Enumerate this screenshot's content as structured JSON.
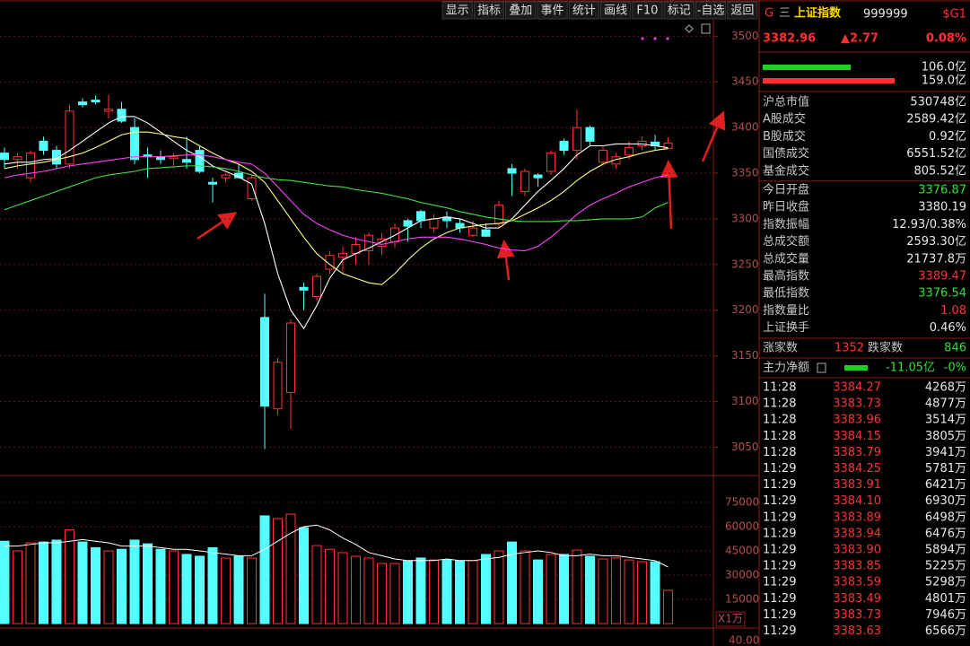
{
  "toolbar": [
    "显示",
    "指标",
    "叠加",
    "事件",
    "统计",
    "画线",
    "F10",
    "标记",
    "-自选",
    "返回"
  ],
  "kline": {
    "ylim": [
      3019,
      3518
    ],
    "yticks": [
      3500,
      3450,
      3400,
      3350,
      3300,
      3250,
      3200,
      3150,
      3100,
      3050
    ],
    "up_color": "#ff3232",
    "down_color": "#54ffff",
    "candles": [
      [
        3372,
        3378,
        3355,
        3365
      ],
      [
        3365,
        3372,
        3355,
        3368
      ],
      [
        3345,
        3375,
        3340,
        3372
      ],
      [
        3385,
        3390,
        3370,
        3375
      ],
      [
        3375,
        3380,
        3355,
        3360
      ],
      [
        3360,
        3425,
        3355,
        3418
      ],
      [
        3428,
        3432,
        3422,
        3425
      ],
      [
        3430,
        3435,
        3425,
        3428
      ],
      [
        3418,
        3436,
        3410,
        3420
      ],
      [
        3420,
        3428,
        3405,
        3407
      ],
      [
        3400,
        3410,
        3360,
        3365
      ],
      [
        3370,
        3378,
        3345,
        3368
      ],
      [
        3368,
        3375,
        3360,
        3365
      ],
      [
        3366,
        3372,
        3358,
        3368
      ],
      [
        3365,
        3390,
        3355,
        3362
      ],
      [
        3375,
        3380,
        3350,
        3352
      ],
      [
        3340,
        3345,
        3318,
        3338
      ],
      [
        3345,
        3350,
        3340,
        3348
      ],
      [
        3350,
        3360,
        3345,
        3345
      ],
      [
        3322,
        3348,
        3320,
        3345
      ],
      [
        3192,
        3218,
        3048,
        3095
      ],
      [
        3092,
        3148,
        3085,
        3143
      ],
      [
        3110,
        3190,
        3070,
        3186
      ],
      [
        3225,
        3230,
        3200,
        3222
      ],
      [
        3215,
        3240,
        3210,
        3237
      ],
      [
        3245,
        3265,
        3240,
        3260
      ],
      [
        3258,
        3270,
        3240,
        3262
      ],
      [
        3262,
        3280,
        3250,
        3272
      ],
      [
        3265,
        3285,
        3250,
        3282
      ],
      [
        3270,
        3285,
        3260,
        3278
      ],
      [
        3275,
        3295,
        3268,
        3290
      ],
      [
        3298,
        3300,
        3275,
        3292
      ],
      [
        3308,
        3310,
        3290,
        3298
      ],
      [
        3290,
        3305,
        3285,
        3300
      ],
      [
        3302,
        3308,
        3290,
        3298
      ],
      [
        3295,
        3300,
        3285,
        3290
      ],
      [
        3282,
        3298,
        3280,
        3290
      ],
      [
        3288,
        3295,
        3280,
        3281
      ],
      [
        3295,
        3320,
        3290,
        3315
      ],
      [
        3355,
        3360,
        3325,
        3350
      ],
      [
        3330,
        3355,
        3325,
        3352
      ],
      [
        3348,
        3350,
        3335,
        3345
      ],
      [
        3352,
        3375,
        3348,
        3372
      ],
      [
        3385,
        3388,
        3370,
        3375
      ],
      [
        3375,
        3420,
        3365,
        3400
      ],
      [
        3400,
        3402,
        3380,
        3385
      ],
      [
        3362,
        3380,
        3358,
        3375
      ],
      [
        3360,
        3372,
        3355,
        3368
      ],
      [
        3370,
        3385,
        3365,
        3378
      ],
      [
        3380,
        3390,
        3375,
        3385
      ],
      [
        3384,
        3392,
        3375,
        3380
      ],
      [
        3376.87,
        3389.47,
        3376.54,
        3382.96
      ]
    ],
    "ma": [
      {
        "color": "#ffffff",
        "values": [
          3360,
          3362,
          3362,
          3365,
          3366,
          3375,
          3385,
          3395,
          3405,
          3412,
          3412,
          3405,
          3395,
          3385,
          3375,
          3368,
          3358,
          3352,
          3346,
          3338,
          3295,
          3240,
          3200,
          3180,
          3205,
          3235,
          3255,
          3262,
          3268,
          3275,
          3282,
          3290,
          3298,
          3300,
          3302,
          3300,
          3295,
          3290,
          3290,
          3300,
          3315,
          3330,
          3342,
          3355,
          3370,
          3380,
          3380,
          3382,
          3382,
          3382,
          3380,
          3378
        ]
      },
      {
        "color": "#ffff80",
        "values": [
          3355,
          3358,
          3360,
          3362,
          3365,
          3368,
          3372,
          3378,
          3385,
          3392,
          3395,
          3395,
          3393,
          3390,
          3388,
          3380,
          3372,
          3365,
          3360,
          3352,
          3340,
          3320,
          3300,
          3280,
          3262,
          3250,
          3240,
          3235,
          3230,
          3228,
          3240,
          3255,
          3268,
          3278,
          3285,
          3290,
          3292,
          3294,
          3295,
          3298,
          3305,
          3312,
          3320,
          3330,
          3342,
          3352,
          3360,
          3365,
          3368,
          3372,
          3375,
          3377
        ]
      },
      {
        "color": "#ff40ff",
        "values": [
          3345,
          3348,
          3350,
          3352,
          3355,
          3358,
          3360,
          3362,
          3364,
          3366,
          3368,
          3368,
          3368,
          3369,
          3370,
          3370,
          3368,
          3365,
          3362,
          3360,
          3350,
          3335,
          3320,
          3305,
          3295,
          3288,
          3282,
          3278,
          3275,
          3272,
          3275,
          3278,
          3280,
          3280,
          3280,
          3278,
          3275,
          3272,
          3268,
          3266,
          3265,
          3270,
          3280,
          3292,
          3305,
          3315,
          3322,
          3328,
          3335,
          3340,
          3345,
          3348
        ]
      },
      {
        "color": "#40e040",
        "values": [
          3310,
          3315,
          3320,
          3325,
          3330,
          3335,
          3340,
          3345,
          3348,
          3350,
          3352,
          3355,
          3356,
          3357,
          3358,
          3358,
          3357,
          3355,
          3352,
          3348,
          3345,
          3343,
          3342,
          3340,
          3338,
          3336,
          3335,
          3332,
          3330,
          3328,
          3325,
          3322,
          3318,
          3315,
          3312,
          3308,
          3305,
          3302,
          3300,
          3298,
          3297,
          3297,
          3297,
          3298,
          3298,
          3299,
          3300,
          3300,
          3300,
          3302,
          3312,
          3318
        ]
      }
    ]
  },
  "volume": {
    "ylim": [
      0,
      88900
    ],
    "yticks": [
      75000,
      60000,
      45000,
      30000,
      15000
    ],
    "unit": "X1万",
    "bottom_label": "40.00",
    "values": [
      51000,
      45000,
      50000,
      50500,
      51700,
      58000,
      50500,
      47000,
      45000,
      46000,
      51700,
      49400,
      46000,
      45000,
      42800,
      41700,
      47000,
      40600,
      41700,
      40600,
      66700,
      65000,
      67800,
      59400,
      48300,
      46000,
      43900,
      41700,
      40600,
      37200,
      37200,
      38900,
      40600,
      39400,
      39400,
      38900,
      38900,
      42800,
      45000,
      50500,
      45000,
      39400,
      42800,
      42800,
      45500,
      41700,
      40000,
      40600,
      39400,
      38300,
      38300,
      20600
    ],
    "ma": {
      "color": "#ffffff",
      "values": [
        48000,
        48000,
        49000,
        50000,
        50000,
        51000,
        52000,
        51000,
        50000,
        48000,
        48000,
        48000,
        47000,
        46000,
        46000,
        45000,
        44000,
        43000,
        42000,
        42000,
        46000,
        51000,
        56000,
        60000,
        61000,
        58000,
        53000,
        49000,
        44000,
        42000,
        40000,
        39000,
        39000,
        39000,
        40000,
        39000,
        39000,
        40000,
        41000,
        43000,
        44000,
        45000,
        44000,
        42000,
        42000,
        43000,
        42000,
        42000,
        41000,
        40000,
        39000,
        35000
      ]
    }
  },
  "quote": {
    "mark": "G",
    "menu": "三",
    "name": "上证指数",
    "code": "999999",
    "tag": "$G1",
    "price": "3382.96",
    "change": "▲2.77",
    "change_pct": "0.08%",
    "flow": {
      "values": [
        106.0,
        159.0
      ],
      "value_labels": [
        "106.0亿",
        "159.0亿"
      ],
      "colors": [
        "#20d020",
        "#ff3232"
      ]
    },
    "stats": [
      {
        "label": "沪总市值",
        "value": "530748亿",
        "color": "#e8e8e8"
      },
      {
        "label": "A股成交",
        "value": "2589.42亿",
        "color": "#e8e8e8"
      },
      {
        "label": "B股成交",
        "value": "0.92亿",
        "color": "#e8e8e8"
      },
      {
        "label": "国债成交",
        "value": "6551.52亿",
        "color": "#e8e8e8"
      },
      {
        "label": "基金成交",
        "value": "805.52亿",
        "color": "#e8e8e8"
      },
      {
        "label": "今日开盘",
        "value": "3376.87",
        "color": "#30e030"
      },
      {
        "label": "昨日收盘",
        "value": "3380.19",
        "color": "#e8e8e8"
      },
      {
        "label": "指数振幅",
        "value": "12.93/0.38%",
        "color": "#e8e8e8"
      },
      {
        "label": "总成交额",
        "value": "2593.30亿",
        "color": "#e8e8e8"
      },
      {
        "label": "总成交量",
        "value": "21737.8万",
        "color": "#e8e8e8"
      },
      {
        "label": "最高指数",
        "value": "3389.47",
        "color": "#ff3232"
      },
      {
        "label": "最低指数",
        "value": "3376.54",
        "color": "#30e030"
      },
      {
        "label": "指数量比",
        "value": "1.08",
        "color": "#ff3232"
      },
      {
        "label": "上证换手",
        "value": "0.46%",
        "color": "#e8e8e8"
      }
    ],
    "breadth": {
      "up_label": "涨家数",
      "up": "1352",
      "down_label": "跌家数",
      "down": "846"
    },
    "main_flow": {
      "label": "主力净额",
      "value": "-11.05亿",
      "pct": "-0%"
    },
    "ticks": [
      [
        "11:28",
        "3384.27",
        "4268万"
      ],
      [
        "11:28",
        "3383.73",
        "4877万"
      ],
      [
        "11:28",
        "3383.96",
        "3514万"
      ],
      [
        "11:28",
        "3384.15",
        "3805万"
      ],
      [
        "11:28",
        "3383.79",
        "3941万"
      ],
      [
        "11:29",
        "3384.25",
        "5781万"
      ],
      [
        "11:29",
        "3383.91",
        "6421万"
      ],
      [
        "11:29",
        "3384.10",
        "6930万"
      ],
      [
        "11:29",
        "3383.89",
        "6498万"
      ],
      [
        "11:29",
        "3383.94",
        "6476万"
      ],
      [
        "11:29",
        "3383.90",
        "5894万"
      ],
      [
        "11:29",
        "3383.85",
        "5225万"
      ],
      [
        "11:29",
        "3383.59",
        "5298万"
      ],
      [
        "11:29",
        "3383.49",
        "4801万"
      ],
      [
        "11:29",
        "3383.73",
        "7946万"
      ],
      [
        "11:29",
        "3383.63",
        "6566万"
      ]
    ]
  }
}
